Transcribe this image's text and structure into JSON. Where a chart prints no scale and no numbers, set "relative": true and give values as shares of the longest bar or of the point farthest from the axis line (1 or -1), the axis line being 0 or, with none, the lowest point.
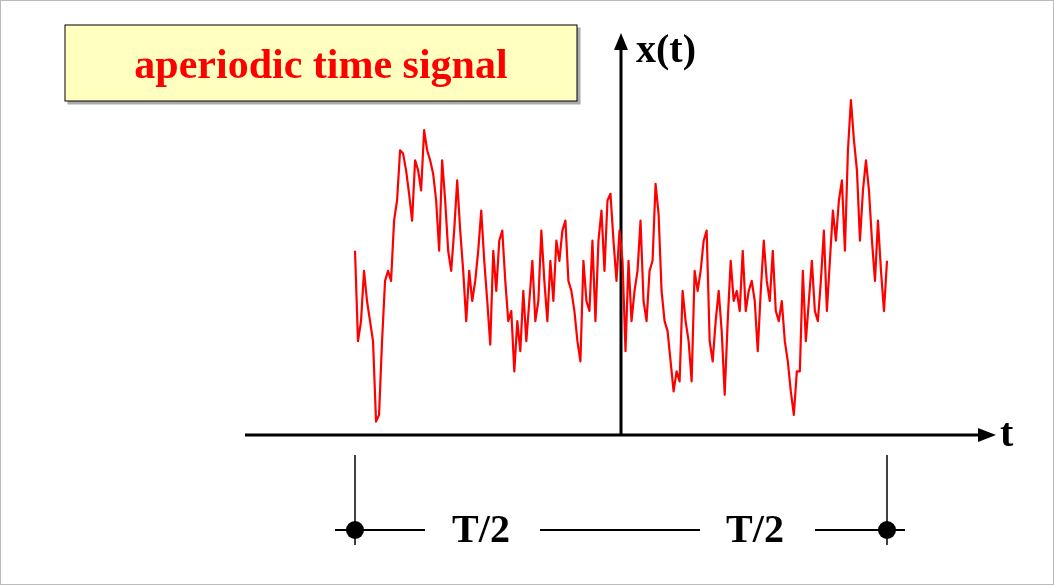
{
  "chart_data": {
    "type": "line",
    "title": "aperiodic time signal",
    "xlabel": "t",
    "ylabel": "x(t)",
    "relative": true,
    "color": "#ff0000",
    "marker": "none",
    "line_style": "solid",
    "annotations": [
      "T/2",
      "T/2"
    ],
    "categories": [
      null,
      null,
      null,
      null,
      null,
      null,
      null,
      null,
      null,
      null,
      null,
      null,
      null,
      null,
      null,
      null,
      null,
      null,
      null,
      null,
      null,
      null,
      null,
      null,
      null,
      null,
      null,
      null,
      null,
      null,
      null,
      null,
      null,
      null,
      null,
      null,
      null,
      null,
      null,
      null,
      null,
      null,
      null,
      null,
      null,
      null,
      null,
      null,
      null,
      null,
      null,
      null,
      null,
      null,
      null,
      null,
      null,
      null,
      null,
      null,
      null,
      null,
      null,
      null,
      null,
      null,
      null,
      null,
      null,
      null,
      null,
      null,
      null,
      null,
      null,
      null,
      null,
      null,
      null,
      null,
      null,
      null,
      null,
      null,
      null,
      null,
      null,
      null,
      null,
      null,
      null,
      null,
      null,
      null,
      null,
      null,
      null,
      null,
      null,
      null,
      null,
      null,
      null,
      null,
      null,
      null,
      null,
      null,
      null,
      null,
      null,
      null,
      null,
      null,
      null,
      null,
      null,
      null,
      null,
      null,
      null,
      null,
      null,
      null,
      null,
      null,
      null,
      null,
      null,
      null,
      null,
      null,
      null,
      null,
      null,
      null,
      null,
      null,
      null,
      null,
      null,
      null,
      null,
      null,
      null,
      null,
      null,
      null,
      null,
      null,
      null,
      null,
      null,
      null,
      null,
      null,
      null,
      null,
      null,
      null,
      null,
      null,
      null,
      null,
      null,
      null,
      null,
      null,
      null,
      null,
      null,
      null,
      null,
      null,
      null,
      null,
      null,
      null
    ],
    "values": [
      0.55,
      0.28,
      0.34,
      0.49,
      0.4,
      0.34,
      0.28,
      0.04,
      0.06,
      0.28,
      0.46,
      0.49,
      0.46,
      0.64,
      0.7,
      0.85,
      0.84,
      0.79,
      0.72,
      0.64,
      0.82,
      0.79,
      0.73,
      0.91,
      0.85,
      0.82,
      0.78,
      0.7,
      0.55,
      0.82,
      0.7,
      0.55,
      0.49,
      0.61,
      0.76,
      0.61,
      0.49,
      0.34,
      0.49,
      0.4,
      0.46,
      0.55,
      0.67,
      0.52,
      0.4,
      0.27,
      0.55,
      0.43,
      0.58,
      0.61,
      0.46,
      0.34,
      0.37,
      0.19,
      0.34,
      0.25,
      0.43,
      0.28,
      0.4,
      0.52,
      0.34,
      0.4,
      0.61,
      0.46,
      0.34,
      0.52,
      0.4,
      0.58,
      0.52,
      0.61,
      0.64,
      0.46,
      0.43,
      0.37,
      0.28,
      0.22,
      0.52,
      0.4,
      0.37,
      0.58,
      0.34,
      0.58,
      0.67,
      0.49,
      0.7,
      0.72,
      0.58,
      0.46,
      0.61,
      0.52,
      0.25,
      0.52,
      0.34,
      0.43,
      0.49,
      0.64,
      0.4,
      0.34,
      0.49,
      0.52,
      0.75,
      0.66,
      0.43,
      0.34,
      0.31,
      0.22,
      0.13,
      0.19,
      0.16,
      0.43,
      0.34,
      0.28,
      0.16,
      0.49,
      0.43,
      0.49,
      0.58,
      0.61,
      0.28,
      0.22,
      0.34,
      0.43,
      0.31,
      0.12,
      0.34,
      0.52,
      0.4,
      0.43,
      0.37,
      0.55,
      0.37,
      0.43,
      0.46,
      0.4,
      0.25,
      0.43,
      0.58,
      0.46,
      0.4,
      0.55,
      0.37,
      0.34,
      0.4,
      0.28,
      0.22,
      0.13,
      0.06,
      0.19,
      0.19,
      0.49,
      0.28,
      0.4,
      0.52,
      0.37,
      0.34,
      0.46,
      0.61,
      0.37,
      0.52,
      0.67,
      0.58,
      0.7,
      0.76,
      0.55,
      0.85,
      1.0,
      0.88,
      0.79,
      0.58,
      0.73,
      0.82,
      0.73,
      0.58,
      0.46,
      0.64,
      0.49,
      0.37,
      0.52
    ]
  }
}
